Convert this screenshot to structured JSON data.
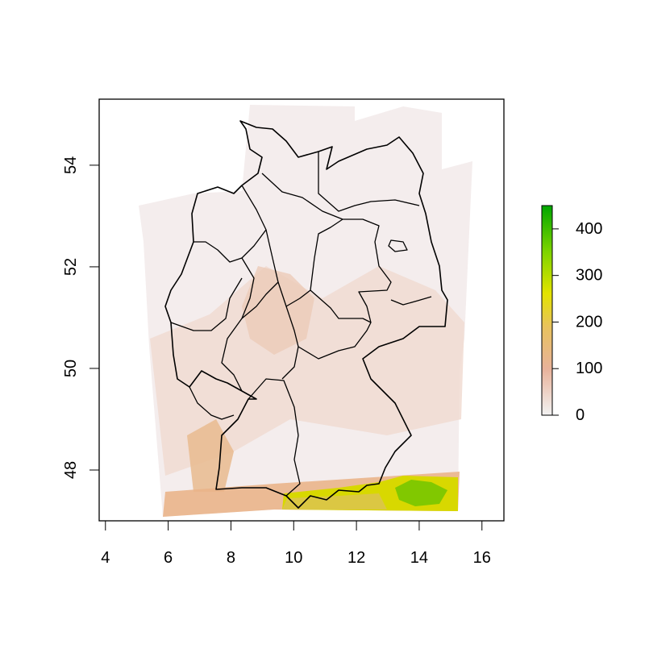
{
  "chart_data": {
    "type": "heatmap",
    "title": "",
    "xlabel": "",
    "ylabel": "",
    "xlim": [
      3.8,
      16.7
    ],
    "ylim": [
      47.0,
      55.3
    ],
    "x_ticks": [
      "4",
      "6",
      "8",
      "10",
      "12",
      "14",
      "16"
    ],
    "x_tick_values": [
      4,
      6,
      8,
      10,
      12,
      14,
      16
    ],
    "y_ticks": [
      "48",
      "50",
      "52",
      "54"
    ],
    "y_tick_values": [
      48,
      50,
      52,
      54
    ],
    "grid": false,
    "legend_position": "right",
    "legend": {
      "min": 0,
      "max": 450,
      "ticks": [
        "0",
        "100",
        "200",
        "300",
        "400"
      ],
      "tick_values": [
        0,
        100,
        200,
        300,
        400
      ],
      "colors": [
        "#f2f2f2",
        "#e8b29a",
        "#e8c25e",
        "#e3e300",
        "#7ed400",
        "#00a600"
      ]
    },
    "raster_colors": {
      "low": "#f5eeee",
      "mid": "#efd3c4",
      "high": "#e6b47e",
      "alpine_yellow": "#d8d800",
      "alpine_green": "#44c000"
    }
  }
}
